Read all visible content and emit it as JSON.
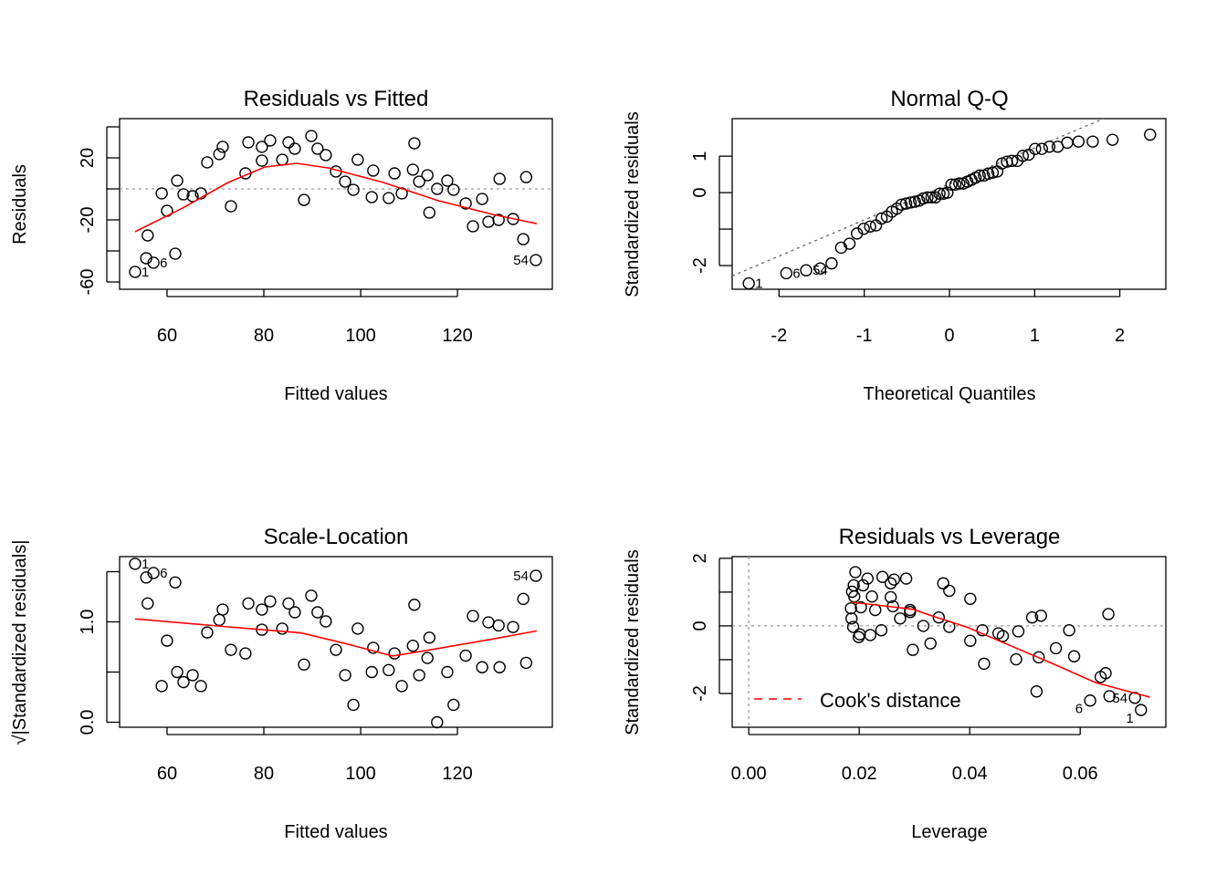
{
  "chart_data": [
    {
      "type": "scatter",
      "title": "Residuals vs Fitted",
      "xlabel": "Fitted values",
      "ylabel": "Residuals",
      "xlim": [
        50.2,
        139.6
      ],
      "ylim": [
        -64.7,
        45.3
      ],
      "xticks": [
        60,
        80,
        100,
        120
      ],
      "xtick_labels": [
        "60",
        "80",
        "100",
        "120"
      ],
      "yticks": [
        -60,
        -40,
        -20,
        0,
        20,
        40
      ],
      "ytick_labels": {
        "-60": "-60",
        "-20": "-20",
        "20": "20"
      },
      "x": [
        53.4,
        55.7,
        56.0,
        57.2,
        58.9,
        60.0,
        62.1,
        61.7,
        63.4,
        65.3,
        67.0,
        68.3,
        70.8,
        71.5,
        73.2,
        76.2,
        76.8,
        79.6,
        79.6,
        81.3,
        83.8,
        85.1,
        86.4,
        88.3,
        89.8,
        91.1,
        92.8,
        94.9,
        96.8,
        98.5,
        99.4,
        102.3,
        102.6,
        105.8,
        107.0,
        108.5,
        110.8,
        111.1,
        112.1,
        113.8,
        114.2,
        115.8,
        117.9,
        119.2,
        121.7,
        123.2,
        125.1,
        126.4,
        128.5,
        128.7,
        131.5,
        133.6,
        134.2,
        136.2
      ],
      "y": [
        -53.5,
        -44.7,
        -30.0,
        -47.6,
        -2.9,
        -14.1,
        5.3,
        -41.8,
        -3.5,
        -4.7,
        -2.9,
        17.1,
        22.4,
        27.1,
        -11.2,
        10.0,
        30.0,
        18.2,
        27.1,
        31.2,
        18.8,
        30.0,
        25.9,
        -7.1,
        34.1,
        25.9,
        21.8,
        11.2,
        4.7,
        -0.6,
        18.8,
        -5.3,
        11.8,
        -5.9,
        10.0,
        -2.9,
        12.4,
        29.4,
        4.7,
        8.8,
        -15.3,
        0.0,
        5.3,
        -0.6,
        -9.4,
        -24.1,
        -6.5,
        -21.2,
        -20.0,
        6.5,
        -19.4,
        -32.4,
        7.6,
        -45.9
      ],
      "point_labels": [
        {
          "index": 0,
          "text": "1"
        },
        {
          "index": 3,
          "text": "6"
        },
        {
          "index": 53,
          "text": "54"
        }
      ],
      "smooth": {
        "color": "#ff0000",
        "x": [
          53.4,
          63.2,
          72.6,
          80.2,
          86.8,
          93.4,
          104.7,
          116.0,
          127.4,
          136.4
        ],
        "y": [
          -27.6,
          -12.4,
          4.1,
          14.1,
          16.5,
          13.5,
          4.1,
          -7.6,
          -16.5,
          -22.4
        ]
      },
      "hline": 0
    },
    {
      "type": "scatter",
      "title": "Normal Q-Q",
      "xlabel": "Theoretical Quantiles",
      "ylabel": "Standardized residuals",
      "xlim": [
        -2.55,
        2.54
      ],
      "ylim": [
        -2.65,
        2.03
      ],
      "xticks": [
        -2,
        -1,
        0,
        1,
        2
      ],
      "xtick_labels": [
        "-2",
        "-1",
        "0",
        "1",
        "2"
      ],
      "yticks": [
        -2,
        -1,
        0,
        1
      ],
      "ytick_labels": {
        "-2": "-2",
        "0": "0",
        "1": "1"
      },
      "sample_source": "standardized residuals (panel 4), sorted against normal quantiles",
      "reference_line": {
        "intercept": 0.24,
        "slope": 0.99
      },
      "point_labels": [
        {
          "index": 0,
          "text": "1"
        },
        {
          "index": 3,
          "text": "6"
        },
        {
          "index": 53,
          "text": "54"
        }
      ]
    },
    {
      "type": "scatter",
      "title": "Scale-Location",
      "xlabel": "Fitted values",
      "ylabel": "√|Standardized residuals|",
      "xlim": [
        50.2,
        139.6
      ],
      "ylim": [
        -0.05,
        1.65
      ],
      "xticks": [
        60,
        80,
        100,
        120
      ],
      "xtick_labels": [
        "60",
        "80",
        "100",
        "120"
      ],
      "yticks": [
        0,
        0.5,
        1.0,
        1.5
      ],
      "ytick_labels": {
        "0": "0.0",
        "1": "1.0"
      },
      "point_labels": [
        {
          "index": 0,
          "text": "1"
        },
        {
          "index": 3,
          "text": "6"
        },
        {
          "index": 53,
          "text": "54"
        }
      ],
      "smooth": {
        "color": "#ff0000",
        "x": [
          53.4,
          72.6,
          87.7,
          97.2,
          106.6,
          114.2,
          127.4,
          136.4
        ],
        "y": [
          1.03,
          0.95,
          0.89,
          0.78,
          0.66,
          0.72,
          0.83,
          0.91
        ]
      }
    },
    {
      "type": "scatter",
      "title": "Residuals vs Leverage",
      "xlabel": "Leverage",
      "ylabel": "Standardized residuals",
      "xlim": [
        -0.003,
        0.0755
      ],
      "ylim": [
        -3.0,
        2.05
      ],
      "xticks": [
        0,
        0.02,
        0.04,
        0.06
      ],
      "xtick_labels": [
        "0.00",
        "0.02",
        "0.04",
        "0.06"
      ],
      "yticks": [
        -2,
        -1,
        0,
        1,
        2
      ],
      "ytick_labels": {
        "-2": "-2",
        "0": "0",
        "2": "2"
      },
      "x": [
        0.071,
        0.0653,
        0.0646,
        0.0618,
        0.058,
        0.0556,
        0.0513,
        0.0521,
        0.0488,
        0.0452,
        0.0423,
        0.0401,
        0.0363,
        0.0352,
        0.0329,
        0.0292,
        0.0285,
        0.0257,
        0.0257,
        0.0242,
        0.0223,
        0.0215,
        0.0207,
        0.0199,
        0.0193,
        0.019,
        0.0187,
        0.0185,
        0.0186,
        0.0189,
        0.0191,
        0.0201,
        0.0203,
        0.022,
        0.0229,
        0.024,
        0.0261,
        0.0263,
        0.0274,
        0.0292,
        0.0297,
        0.0316,
        0.0344,
        0.0363,
        0.0401,
        0.0426,
        0.046,
        0.0484,
        0.0525,
        0.0529,
        0.0589,
        0.0637,
        0.0651,
        0.0699
      ],
      "y": [
        -2.49,
        -2.08,
        -1.4,
        -2.21,
        -0.13,
        -0.66,
        0.25,
        -1.94,
        -0.16,
        -0.22,
        -0.13,
        0.8,
        1.04,
        1.26,
        -0.52,
        0.47,
        1.4,
        0.85,
        1.26,
        1.45,
        0.87,
        1.4,
        1.2,
        -0.33,
        1.59,
        1.2,
        1.01,
        0.52,
        0.22,
        -0.03,
        0.87,
        -0.25,
        0.55,
        -0.27,
        0.47,
        -0.13,
        0.58,
        1.37,
        0.22,
        0.41,
        -0.71,
        0.0,
        0.25,
        -0.03,
        -0.44,
        -1.12,
        -0.3,
        -0.99,
        -0.93,
        0.3,
        -0.9,
        -1.51,
        0.35,
        -2.13
      ],
      "point_labels": [
        {
          "index": 0,
          "text": "1"
        },
        {
          "index": 3,
          "text": "6"
        },
        {
          "index": 53,
          "text": "54"
        }
      ],
      "smooth": {
        "color": "#ff0000",
        "x": [
          0.0185,
          0.0231,
          0.0298,
          0.0331,
          0.0397,
          0.0463,
          0.0545,
          0.0628,
          0.0726
        ],
        "y": [
          0.7,
          0.62,
          0.49,
          0.3,
          -0.05,
          -0.51,
          -1.08,
          -1.68,
          -2.11
        ]
      },
      "hline": 0,
      "vline": 0,
      "legend": {
        "label": "Cook's distance",
        "color": "#ff0000",
        "position": "bottom-left"
      }
    }
  ]
}
